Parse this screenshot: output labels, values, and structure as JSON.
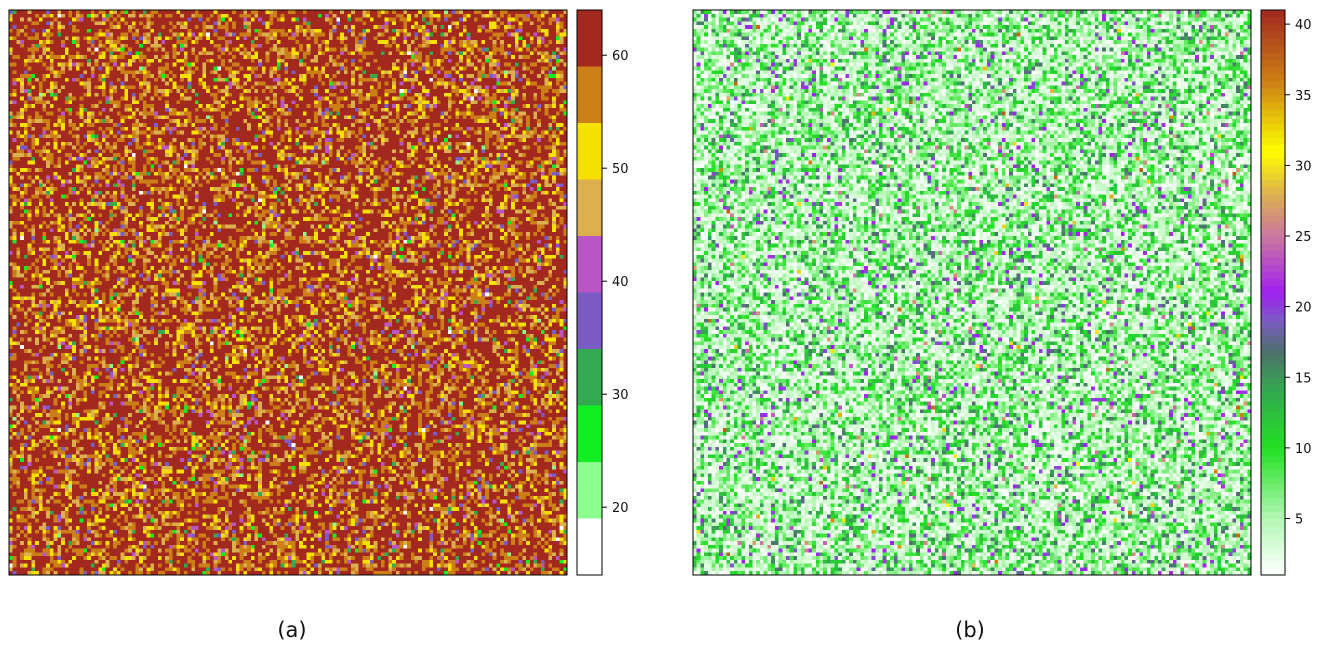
{
  "chart_data": [
    {
      "type": "heatmap",
      "caption": "(a)",
      "grid": false,
      "legend_position": "right",
      "colorbar": {
        "range": [
          14,
          64
        ],
        "ticks": [
          20,
          30,
          40,
          50,
          60
        ],
        "bands": [
          {
            "from": 14,
            "to": 19,
            "color": "#ffffff"
          },
          {
            "from": 19,
            "to": 24,
            "color": "#8cff8c"
          },
          {
            "from": 24,
            "to": 29,
            "color": "#11ee22"
          },
          {
            "from": 29,
            "to": 34,
            "color": "#33aa4f"
          },
          {
            "from": 34,
            "to": 39,
            "color": "#7b5cc4"
          },
          {
            "from": 39,
            "to": 44,
            "color": "#b955c4"
          },
          {
            "from": 44,
            "to": 49,
            "color": "#ddb04f"
          },
          {
            "from": 49,
            "to": 54,
            "color": "#f5e000"
          },
          {
            "from": 54,
            "to": 59,
            "color": "#cc7f16"
          },
          {
            "from": 59,
            "to": 64,
            "color": "#a3291f"
          }
        ]
      }
    },
    {
      "type": "heatmap",
      "caption": "(b)",
      "grid": false,
      "legend_position": "right",
      "colorbar": {
        "range": [
          1,
          41
        ],
        "ticks": [
          5,
          10,
          15,
          20,
          25,
          30,
          35,
          40
        ],
        "color_stops": [
          {
            "value": 1,
            "color": "#ffffff"
          },
          {
            "value": 5,
            "color": "#b4f7b4"
          },
          {
            "value": 10,
            "color": "#22e022"
          },
          {
            "value": 14,
            "color": "#33aa4f"
          },
          {
            "value": 17,
            "color": "#4e6e6e"
          },
          {
            "value": 19,
            "color": "#7b5cc4"
          },
          {
            "value": 21,
            "color": "#a020f0"
          },
          {
            "value": 25,
            "color": "#cc77a0"
          },
          {
            "value": 28,
            "color": "#ddb04f"
          },
          {
            "value": 31,
            "color": "#ffff00"
          },
          {
            "value": 36,
            "color": "#cc7f16"
          },
          {
            "value": 41,
            "color": "#a3291f"
          }
        ]
      }
    }
  ]
}
